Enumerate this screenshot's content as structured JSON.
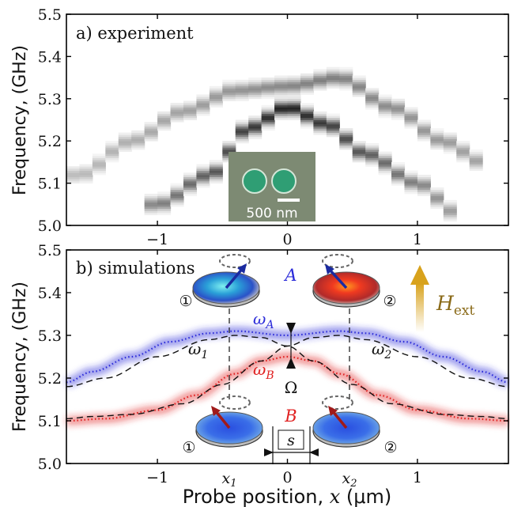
{
  "figure": {
    "xlabel": "Probe position, x (μm)",
    "xlabel_parts": {
      "prefix": "Probe position, ",
      "var": "x",
      "unit": " (μm)"
    }
  },
  "chart_data": [
    {
      "type": "heatmap",
      "panel_label": "a) experiment",
      "ylabel": "Frequency, (GHz)",
      "xlim": [
        -1.7,
        1.7
      ],
      "ylim": [
        5.0,
        5.5
      ],
      "xticks": [
        -1,
        0,
        1
      ],
      "xtick_labels": [
        "−1",
        "0",
        "1"
      ],
      "yticks": [
        5.0,
        5.1,
        5.2,
        5.3,
        5.4,
        5.5
      ],
      "ytick_labels": [
        "5.0",
        "5.1",
        "5.2",
        "5.3",
        "5.4",
        "5.5"
      ],
      "colormap": "grayscale (white = low, black = high intensity)",
      "bin_width_um": 0.1,
      "branches": [
        {
          "x": [
            -1.6,
            -1.2,
            -0.8,
            -0.4,
            0.0,
            0.4,
            0.8,
            1.2,
            1.5
          ],
          "y": [
            5.12,
            5.2,
            5.27,
            5.32,
            5.33,
            5.35,
            5.28,
            5.2,
            5.15
          ]
        },
        {
          "x": [
            -1.0,
            -0.6,
            -0.3,
            0.0,
            0.3,
            0.6,
            1.0,
            1.3
          ],
          "y": [
            5.05,
            5.12,
            5.23,
            5.28,
            5.24,
            5.17,
            5.1,
            5.03
          ]
        }
      ],
      "inset": {
        "scalebar_label": "500 nm",
        "background": "#7d8a73",
        "disk_color": "#2f9e74"
      }
    },
    {
      "type": "line",
      "panel_label": "b) simulations",
      "ylabel": "Frequency, (GHz)",
      "xlim": [
        -1.7,
        1.7
      ],
      "ylim": [
        5.0,
        5.5
      ],
      "xticks": [
        -1,
        0,
        1
      ],
      "xtick_labels": [
        "−1",
        "0",
        "1"
      ],
      "yticks": [
        5.0,
        5.1,
        5.2,
        5.3,
        5.4,
        5.5
      ],
      "ytick_labels": [
        "5.0",
        "5.1",
        "5.2",
        "5.3",
        "5.4",
        "5.5"
      ],
      "series": [
        {
          "name": "ωA",
          "color": "#2b2bd9",
          "style": "dotted + blurred band",
          "x": [
            -1.7,
            -1.5,
            -1.2,
            -0.9,
            -0.6,
            -0.4,
            0.0,
            0.4,
            0.6,
            0.9,
            1.2,
            1.5,
            1.7
          ],
          "y": [
            5.19,
            5.215,
            5.25,
            5.285,
            5.305,
            5.31,
            5.3,
            5.31,
            5.305,
            5.285,
            5.25,
            5.215,
            5.19
          ]
        },
        {
          "name": "ωB",
          "color": "#e02020",
          "style": "dotted + blurred band",
          "x": [
            -1.7,
            -1.4,
            -1.0,
            -0.7,
            -0.4,
            -0.2,
            0.0,
            0.2,
            0.4,
            0.7,
            1.0,
            1.4,
            1.7
          ],
          "y": [
            5.1,
            5.105,
            5.125,
            5.16,
            5.21,
            5.24,
            5.25,
            5.24,
            5.21,
            5.16,
            5.125,
            5.105,
            5.1
          ]
        },
        {
          "name": "ω1",
          "color": "#111111",
          "style": "dashed",
          "x": [
            -1.7,
            -1.4,
            -1.0,
            -0.6,
            -0.4,
            -0.2,
            0.0,
            0.2,
            0.5,
            0.8,
            1.2,
            1.5,
            1.7
          ],
          "y": [
            5.18,
            5.2,
            5.25,
            5.29,
            5.3,
            5.295,
            5.275,
            5.24,
            5.185,
            5.14,
            5.115,
            5.11,
            5.105
          ]
        },
        {
          "name": "ω2",
          "color": "#111111",
          "style": "dashed",
          "x": [
            -1.7,
            -1.5,
            -1.2,
            -0.8,
            -0.5,
            -0.2,
            0.0,
            0.2,
            0.4,
            0.6,
            1.0,
            1.4,
            1.7
          ],
          "y": [
            5.105,
            5.11,
            5.115,
            5.14,
            5.185,
            5.24,
            5.275,
            5.295,
            5.3,
            5.29,
            5.25,
            5.2,
            5.18
          ]
        }
      ],
      "annotations": {
        "omega_A": "ω",
        "omega_A_sub": "A",
        "omega_B": "ω",
        "omega_B_sub": "B",
        "omega_1": "ω",
        "omega_1_sub": "1",
        "omega_2": "ω",
        "omega_2_sub": "2",
        "gap": "Ω",
        "separation": "s",
        "x1": "x",
        "x1_sub": "1",
        "x2": "x",
        "x2_sub": "2",
        "mode_A": "A",
        "mode_B": "B",
        "field": "H",
        "field_sub": "ext",
        "disk_1": "①",
        "disk_2": "②",
        "x1_pos": -0.42,
        "x2_pos": 0.42
      }
    }
  ]
}
